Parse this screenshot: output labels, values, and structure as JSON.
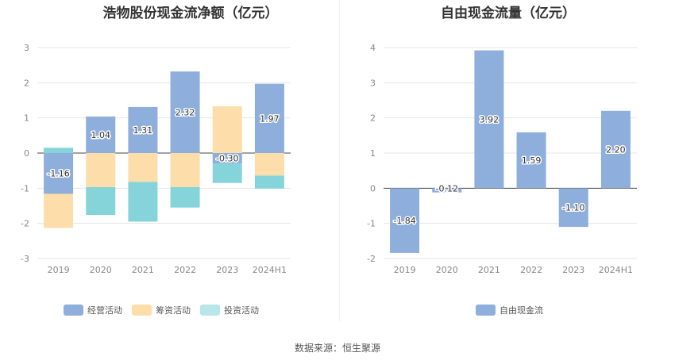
{
  "source": "数据来源：恒生聚源",
  "colors": {
    "operating": "#8eaedb",
    "financing": "#fdddaa",
    "investing": "#85d4d9",
    "fcf": "#8eaedb"
  },
  "chart_data": [
    {
      "type": "bar",
      "stacked": true,
      "title": "浩物股份现金流净额（亿元）",
      "categories": [
        "2019",
        "2020",
        "2021",
        "2022",
        "2023",
        "2024H1"
      ],
      "ylim": [
        -3,
        3
      ],
      "yticks": [
        "3",
        "2",
        "1",
        "0",
        "-1",
        "-2",
        "-3"
      ],
      "grid": true,
      "legend_position": "bottom",
      "series": [
        {
          "name": "经营活动",
          "values": [
            -1.16,
            1.04,
            1.31,
            2.32,
            -0.3,
            1.97
          ],
          "labels": [
            "-1.16",
            "1.04",
            "1.31",
            "2.32",
            "-0.30",
            "1.97"
          ]
        },
        {
          "name": "筹资活动",
          "values": [
            -0.97,
            -0.97,
            -0.82,
            -0.97,
            1.33,
            -0.64
          ]
        },
        {
          "name": "投资活动",
          "values": [
            0.15,
            -0.79,
            -1.13,
            -0.58,
            -0.55,
            -0.37
          ]
        }
      ]
    },
    {
      "type": "bar",
      "title": "自由现金流量（亿元）",
      "categories": [
        "2019",
        "2020",
        "2021",
        "2022",
        "2023",
        "2024H1"
      ],
      "ylim": [
        -2,
        4
      ],
      "yticks": [
        "4",
        "3",
        "2",
        "1",
        "0",
        "-1",
        "-2"
      ],
      "grid": true,
      "legend_position": "bottom",
      "series": [
        {
          "name": "自由现金流",
          "values": [
            -1.84,
            -0.12,
            3.92,
            1.59,
            -1.1,
            2.2
          ],
          "labels": [
            "-1.84",
            "-0.12",
            "3.92",
            "1.59",
            "-1.10",
            "2.20"
          ]
        }
      ]
    }
  ]
}
